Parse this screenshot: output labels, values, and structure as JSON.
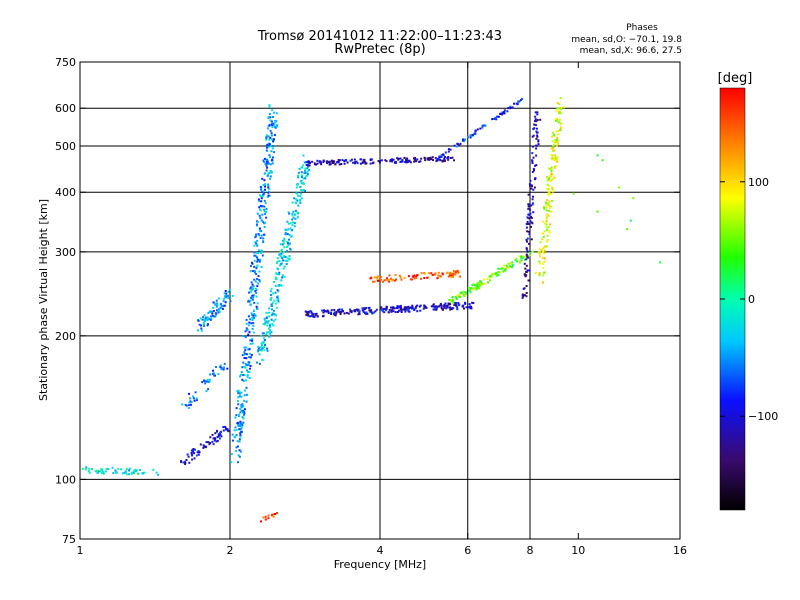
{
  "header": {
    "title_line1": "Tromsø 20141012 11:22:00–11:23:43",
    "title_line2": "RwPretec (8p)",
    "phases_title": "Phases",
    "phases_line1": "mean, sd,O: −70.1, 19.8",
    "phases_line2": "mean, sd,X:  96.6, 27.5"
  },
  "colorbar": {
    "label": "[deg]",
    "ticks": [
      {
        "value": 100,
        "label": "100"
      },
      {
        "value": 0,
        "label": "0"
      },
      {
        "value": -100,
        "label": "−100"
      }
    ],
    "range": [
      -180,
      180
    ]
  },
  "chart_data": {
    "type": "scatter",
    "xlabel": "Frequency [MHz]",
    "ylabel": "Stationary phase Virtual Height [km]",
    "xscale": "log",
    "yscale": "log",
    "xlim": [
      1,
      16
    ],
    "ylim": [
      75,
      750
    ],
    "grid": true,
    "x_ticks": [
      1,
      2,
      4,
      6,
      8,
      10,
      16
    ],
    "x_tick_labels": [
      "1",
      "2",
      "4",
      "6",
      "8",
      "10",
      "16"
    ],
    "y_ticks": [
      75,
      100,
      200,
      300,
      400,
      500,
      600,
      750
    ],
    "y_tick_labels": [
      "75",
      "100",
      "200",
      "300",
      "400",
      "500",
      "600",
      "750"
    ],
    "x_gridlines": [
      2,
      4,
      6,
      8
    ],
    "y_gridlines": [
      100,
      200,
      300,
      400,
      500,
      600
    ],
    "color_meaning": "phase in degrees",
    "traces": [
      {
        "segment": [
          [
            1.0,
            105
          ],
          [
            1.45,
            103
          ]
        ],
        "phase": -20,
        "spread": 4,
        "n": 55
      },
      {
        "segment": [
          [
            1.6,
            108
          ],
          [
            1.98,
            128
          ]
        ],
        "phase": -100,
        "spread": 6,
        "n": 70
      },
      {
        "segment": [
          [
            1.6,
            140
          ],
          [
            1.95,
            175
          ]
        ],
        "phase": -60,
        "spread": 7,
        "n": 45
      },
      {
        "segment": [
          [
            1.75,
            210
          ],
          [
            2.0,
            245
          ]
        ],
        "phase": -50,
        "spread": 8,
        "n": 80
      },
      {
        "segment": [
          [
            2.05,
            110
          ],
          [
            2.45,
            600
          ]
        ],
        "phase": -50,
        "spread": 10,
        "n": 420
      },
      {
        "segment": [
          [
            2.3,
            180
          ],
          [
            2.85,
            470
          ]
        ],
        "phase": -30,
        "spread": 10,
        "n": 260
      },
      {
        "segment": [
          [
            2.85,
            460
          ],
          [
            5.6,
            470
          ]
        ],
        "phase": -110,
        "spread": 3,
        "n": 170
      },
      {
        "segment": [
          [
            5.2,
            470
          ],
          [
            7.8,
            630
          ]
        ],
        "phase": -85,
        "spread": 2,
        "n": 70
      },
      {
        "segment": [
          [
            2.85,
            222
          ],
          [
            6.2,
            232
          ]
        ],
        "phase": -105,
        "spread": 4,
        "n": 260
      },
      {
        "segment": [
          [
            3.8,
            262
          ],
          [
            5.8,
            270
          ]
        ],
        "phase": 150,
        "spread": 4,
        "n": 90
      },
      {
        "segment": [
          [
            5.5,
            235
          ],
          [
            8.1,
            300
          ]
        ],
        "phase": 50,
        "spread": 4,
        "n": 130
      },
      {
        "segment": [
          [
            7.8,
            240
          ],
          [
            8.3,
            600
          ]
        ],
        "phase": -110,
        "spread": 6,
        "n": 120
      },
      {
        "segment": [
          [
            8.35,
            260
          ],
          [
            9.2,
            620
          ]
        ],
        "phase": 80,
        "spread": 8,
        "n": 170
      },
      {
        "segment": [
          [
            2.3,
            82
          ],
          [
            2.5,
            85
          ]
        ],
        "phase": 160,
        "spread": 2,
        "n": 12
      },
      {
        "segment": [
          [
            10.6,
            470
          ],
          [
            14.8,
            270
          ]
        ],
        "phase": 40,
        "spread": 40,
        "n": 9
      }
    ]
  }
}
